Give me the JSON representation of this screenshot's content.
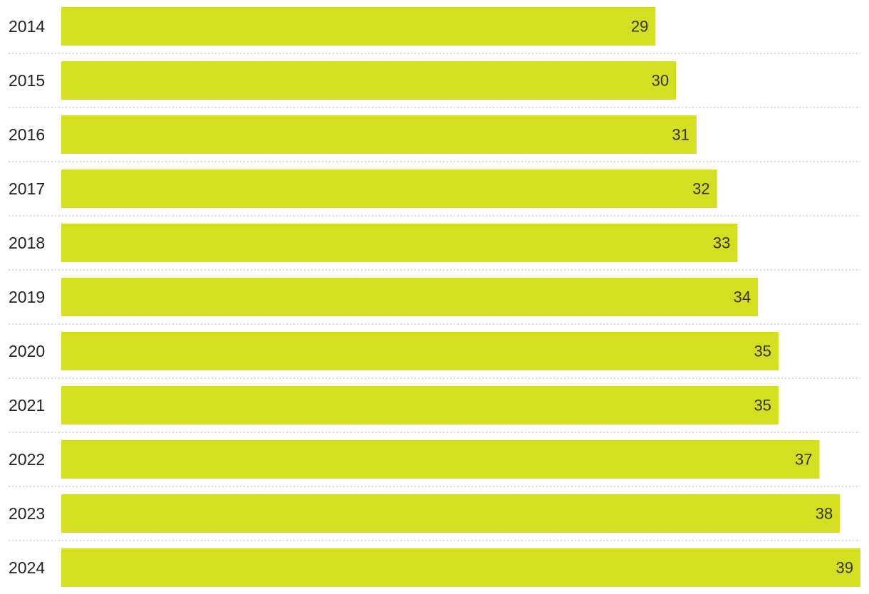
{
  "colors": {
    "bar": "#d5df21",
    "value_text": "#333333",
    "category_text": "#222222",
    "separator": "#c4c4c4"
  },
  "chart_data": {
    "type": "bar",
    "orientation": "horizontal",
    "categories": [
      "2014",
      "2015",
      "2016",
      "2017",
      "2018",
      "2019",
      "2020",
      "2021",
      "2022",
      "2023",
      "2024"
    ],
    "values": [
      29,
      30,
      31,
      32,
      33,
      34,
      35,
      35,
      37,
      38,
      39
    ],
    "value_labels_shown": true,
    "xlim": [
      0,
      39
    ],
    "grid": false,
    "row_separators": "dotted",
    "legend": "none"
  }
}
